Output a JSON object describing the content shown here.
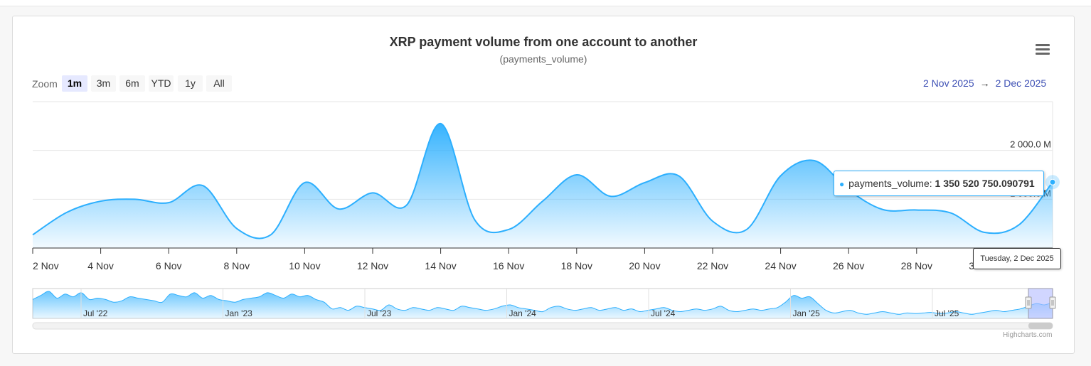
{
  "page": {
    "title": "XRP payment volume from one account to another",
    "subtitle": "(payments_volume)",
    "credits": "Highcharts.com"
  },
  "toolbar": {
    "zoom_label": "Zoom",
    "zoom_buttons": [
      {
        "label": "1m",
        "active": true
      },
      {
        "label": "3m",
        "active": false
      },
      {
        "label": "6m",
        "active": false
      },
      {
        "label": "YTD",
        "active": false
      },
      {
        "label": "1y",
        "active": false
      },
      {
        "label": "All",
        "active": false
      }
    ],
    "range_from": "2 Nov 2025",
    "range_arrow": "→",
    "range_to": "2 Dec 2025"
  },
  "tooltip": {
    "series_label": "payments_volume:",
    "value": "1 350 520 750.090791",
    "date": "Tuesday, 2 Dec 2025"
  },
  "colors": {
    "series": "#2caffe",
    "grid": "#e6e6e6",
    "axis": "#333333",
    "navigator_mask": "#b3bbff"
  },
  "chart_data": {
    "type": "area",
    "series": [
      {
        "name": "payments_volume",
        "x": [
          "2025-11-02",
          "2025-11-03",
          "2025-11-04",
          "2025-11-05",
          "2025-11-06",
          "2025-11-07",
          "2025-11-08",
          "2025-11-09",
          "2025-11-10",
          "2025-11-11",
          "2025-11-12",
          "2025-11-13",
          "2025-11-14",
          "2025-11-15",
          "2025-11-16",
          "2025-11-17",
          "2025-11-18",
          "2025-11-19",
          "2025-11-20",
          "2025-11-21",
          "2025-11-22",
          "2025-11-23",
          "2025-11-24",
          "2025-11-25",
          "2025-11-26",
          "2025-11-27",
          "2025-11-28",
          "2025-11-29",
          "2025-11-30",
          "2025-12-01",
          "2025-12-02"
        ],
        "y": [
          270,
          730,
          960,
          1000,
          930,
          1280,
          400,
          270,
          1340,
          800,
          1130,
          880,
          2550,
          580,
          380,
          960,
          1500,
          1060,
          1340,
          1480,
          550,
          380,
          1480,
          1790,
          1190,
          790,
          780,
          720,
          320,
          470,
          1350
        ]
      }
    ],
    "x_tick_labels": [
      "2 Nov",
      "4 Nov",
      "6 Nov",
      "8 Nov",
      "10 Nov",
      "12 Nov",
      "14 Nov",
      "16 Nov",
      "18 Nov",
      "20 Nov",
      "22 Nov",
      "24 Nov",
      "26 Nov",
      "28 Nov",
      "30 Nov"
    ],
    "y_tick_labels": [
      "1 000.0 M",
      "2 000.0 M"
    ],
    "y_ticks": [
      1000,
      2000
    ],
    "ylim": [
      0,
      3000
    ],
    "xlabel": "",
    "ylabel": "",
    "grid": true,
    "navigator": {
      "labels": [
        "Jul '22",
        "Jan '23",
        "Jul '23",
        "Jan '24",
        "Jul '24",
        "Jan '25",
        "Jul '25"
      ],
      "values": [
        0.7,
        0.85,
        1,
        0.75,
        0.9,
        0.8,
        0.95,
        0.7,
        0.75,
        0.7,
        0.6,
        0.65,
        0.8,
        0.75,
        0.7,
        0.65,
        0.6,
        0.9,
        0.85,
        0.8,
        0.95,
        0.75,
        0.85,
        0.7,
        0.65,
        0.6,
        0.7,
        0.75,
        0.8,
        0.95,
        0.85,
        0.75,
        0.9,
        0.8,
        0.85,
        0.7,
        0.6,
        0.35,
        0.4,
        0.3,
        0.45,
        0.4,
        0.35,
        0.3,
        0.5,
        0.35,
        0.3,
        0.4,
        0.35,
        0.3,
        0.4,
        0.35,
        0.3,
        0.45,
        0.4,
        0.35,
        0.3,
        0.35,
        0.45,
        0.5,
        0.4,
        0.35,
        0.3,
        0.25,
        0.4,
        0.45,
        0.35,
        0.3,
        0.35,
        0.4,
        0.3,
        0.35,
        0.4,
        0.3,
        0.35,
        0.25,
        0.3,
        0.35,
        0.4,
        0.3,
        0.25,
        0.3,
        0.35,
        0.3,
        0.35,
        0.45,
        0.3,
        0.25,
        0.3,
        0.35,
        0.3,
        0.35,
        0.4,
        0.6,
        0.85,
        0.75,
        0.8,
        0.55,
        0.3,
        0.2,
        0.25,
        0.3,
        0.2,
        0.15,
        0.2,
        0.25,
        0.2,
        0.15,
        0.2,
        0.18,
        0.2,
        0.22,
        0.18,
        0.2,
        0.25,
        0.2,
        0.15,
        0.2,
        0.25,
        0.3,
        0.25,
        0.3,
        0.35,
        0.45,
        0.55,
        0.5,
        0.6
      ]
    }
  }
}
